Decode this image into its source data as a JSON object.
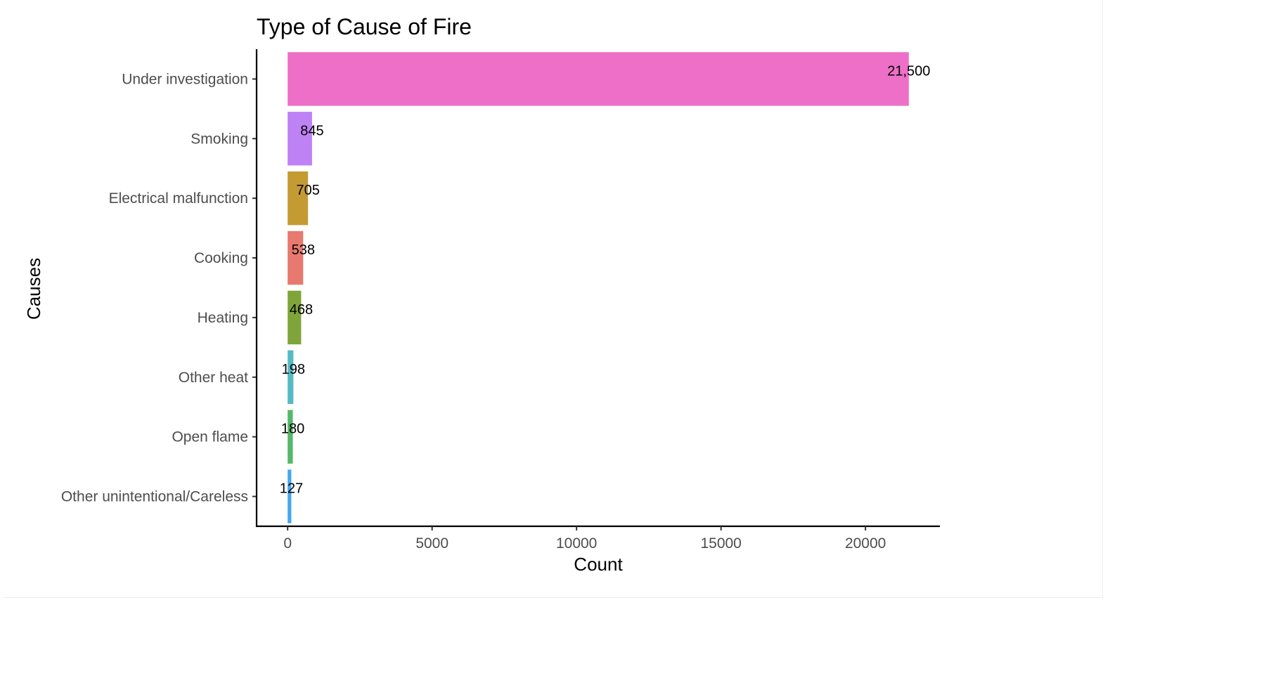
{
  "chart_data": {
    "type": "bar",
    "orientation": "horizontal",
    "title": "Type of Cause of Fire",
    "xlabel": "Count",
    "ylabel": "Causes",
    "categories": [
      "Under investigation",
      "Smoking",
      "Electrical malfunction",
      "Cooking",
      "Heating",
      "Other heat",
      "Open flame",
      "Other unintentional/Careless"
    ],
    "values": [
      21500,
      845,
      705,
      538,
      468,
      198,
      180,
      127
    ],
    "value_labels": [
      "21,500",
      "845",
      "705",
      "538",
      "468",
      "198",
      "180",
      "127"
    ],
    "colors": [
      "#ED6FC7",
      "#BE82F5",
      "#C49A33",
      "#E8796F",
      "#7FA53A",
      "#55BAC4",
      "#57B76A",
      "#45A8EE"
    ],
    "xticks": [
      0,
      5000,
      10000,
      15000,
      20000
    ],
    "xtick_labels": [
      "0",
      "5000",
      "10000",
      "15000",
      "20000"
    ],
    "xlim": [
      -1075,
      22575
    ],
    "grid": false,
    "legend": "none"
  }
}
